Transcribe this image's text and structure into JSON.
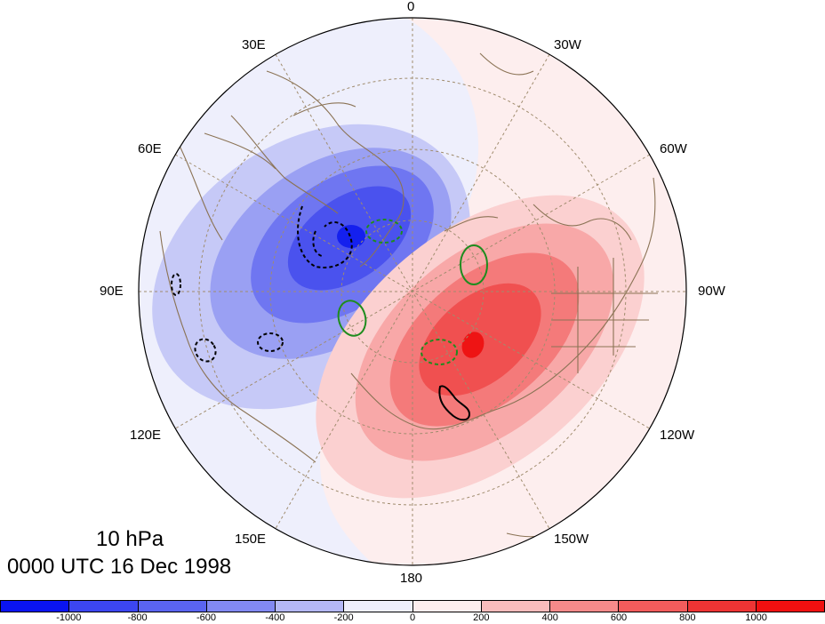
{
  "map": {
    "level_label": "10 hPa",
    "time_label": "0000 UTC 16 Dec 1998",
    "longitude_labels": [
      "0",
      "30W",
      "60W",
      "90W",
      "120W",
      "150W",
      "180",
      "150E",
      "120E",
      "90E",
      "60E",
      "30E"
    ],
    "projection": "north polar stereographic",
    "grid": true,
    "coastline_color": "#8b7355"
  },
  "colorbar": {
    "ticks": [
      "-1000",
      "-800",
      "-600",
      "-400",
      "-200",
      "0",
      "200",
      "400",
      "600",
      "800",
      "1000"
    ],
    "colors": [
      "#0a14f0",
      "#3c46f0",
      "#5a64f0",
      "#8289f2",
      "#b4b8f6",
      "#eeeffc",
      "#fdeeee",
      "#f9bcbc",
      "#f68a8a",
      "#f25c5c",
      "#ee3434",
      "#f01010"
    ]
  },
  "chart_data": {
    "type": "heatmap",
    "title": "10 hPa",
    "subtitle": "0000 UTC 16 Dec 1998",
    "fields": [
      {
        "sign": "negative",
        "center_lon": "60E",
        "peak_value": -1000,
        "levels": [
          -200,
          -400,
          -600,
          -800,
          -1000
        ]
      },
      {
        "sign": "positive",
        "center_lon": "120W",
        "peak_value": 1000,
        "levels": [
          200,
          400,
          600,
          800,
          1000
        ]
      }
    ],
    "contour_overlays": [
      {
        "color": "black",
        "style": "dashed"
      },
      {
        "color": "black",
        "style": "solid"
      },
      {
        "color": "green",
        "style": "solid"
      },
      {
        "color": "green",
        "style": "dashed"
      }
    ]
  }
}
